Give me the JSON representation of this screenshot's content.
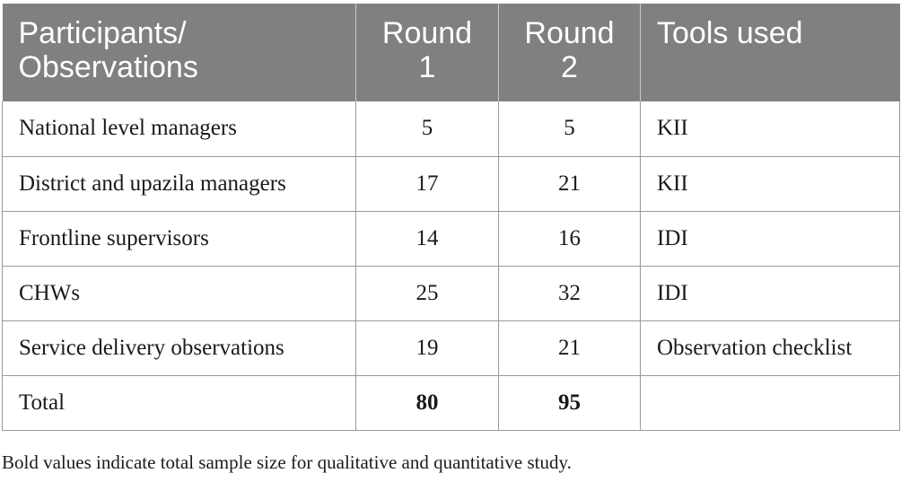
{
  "table": {
    "headers": {
      "col1_line1": "Participants/",
      "col1_line2": "Observations",
      "col2_line1": "Round",
      "col2_line2": "1",
      "col3_line1": "Round",
      "col3_line2": "2",
      "col4": "Tools used"
    },
    "rows": [
      {
        "participant": "National level managers",
        "round1": "5",
        "round2": "5",
        "tool": "KII"
      },
      {
        "participant": "District and upazila managers",
        "round1": "17",
        "round2": "21",
        "tool": "KII"
      },
      {
        "participant": "Frontline supervisors",
        "round1": "14",
        "round2": "16",
        "tool": "IDI"
      },
      {
        "participant": "CHWs",
        "round1": "25",
        "round2": "32",
        "tool": "IDI"
      },
      {
        "participant": "Service delivery observations",
        "round1": "19",
        "round2": "21",
        "tool": "Observation checklist"
      },
      {
        "participant": "Total",
        "round1": "80",
        "round2": "95",
        "tool": ""
      }
    ]
  },
  "footnote": "Bold values indicate total sample size for qualitative and quantitative study."
}
